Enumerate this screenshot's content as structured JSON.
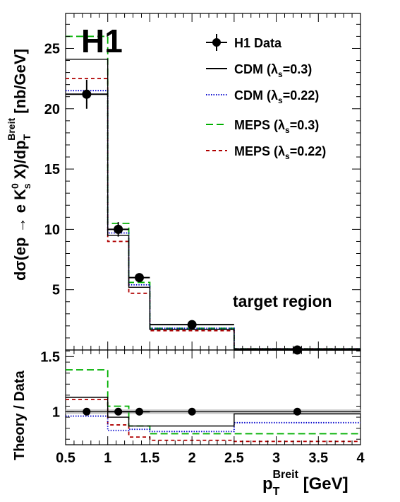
{
  "chart_data": [
    {
      "type": "line",
      "panel": "main",
      "experiment_label": "H1",
      "annotation": "target region",
      "ylabel_parts": {
        "main": "dσ(ep → e K",
        "sup0": "0",
        "sub_s": "s",
        "rest": " X)/dp",
        "sub_T": "T",
        "sup_breit": "Breit",
        "unit": " [nb/GeV]"
      },
      "xlim": [
        0.5,
        4.0
      ],
      "ylim": [
        0.0,
        27.9
      ],
      "log_y": false,
      "grid": false,
      "y_ticks": [
        5,
        10,
        15,
        20,
        25
      ],
      "y_tick_labels": [
        "5",
        "10",
        "15",
        "20",
        "25"
      ],
      "bin_edges": [
        0.5,
        1.0,
        1.25,
        1.5,
        2.5,
        4.0
      ],
      "data": {
        "name": "H1 Data",
        "x": [
          0.75,
          1.125,
          1.375,
          2.0,
          3.25
        ],
        "y": [
          21.2,
          10.0,
          6.0,
          2.1,
          0.0
        ],
        "y_err": [
          1.2,
          0.6,
          0.35,
          0.15,
          0.1
        ],
        "x_half_width": [
          0.25,
          0.125,
          0.125,
          0.5,
          0.75
        ]
      },
      "series": [
        {
          "name": "CDM (λs=0.3)",
          "line_style": "solid",
          "color": "#000000",
          "values": [
            24.1,
            9.5,
            5.2,
            1.7,
            0.1
          ]
        },
        {
          "name": "CDM (λs=0.22)",
          "line_style": "dotted",
          "color": "#0000cc",
          "values": [
            21.5,
            9.7,
            5.4,
            1.8,
            0.1
          ]
        },
        {
          "name": "MEPS (λs=0.3)",
          "line_style": "dashed",
          "color": "#00b000",
          "values": [
            26.0,
            10.5,
            5.6,
            1.8,
            0.1
          ]
        },
        {
          "name": "MEPS (λs=0.22)",
          "line_style": "short-dashed",
          "color": "#b00000",
          "values": [
            22.5,
            9.0,
            4.7,
            1.6,
            0.1
          ]
        }
      ],
      "legend": {
        "placement": "top-right",
        "entries": [
          {
            "main": "H1 Data",
            "sub": "",
            "tail": ""
          },
          {
            "main": "CDM (λ",
            "sub": "s",
            "tail": "=0.3)"
          },
          {
            "main": "CDM (λ",
            "sub": "s",
            "tail": "=0.22)"
          },
          {
            "main": "MEPS (λ",
            "sub": "s",
            "tail": "=0.3)"
          },
          {
            "main": "MEPS (λ",
            "sub": "s",
            "tail": "=0.22)"
          }
        ]
      }
    },
    {
      "type": "line",
      "panel": "ratio",
      "ylabel": "Theory / Data",
      "xlabel_parts": {
        "main": "p",
        "sub_T": "T",
        "sup_breit": "Breit",
        "unit": " [GeV]"
      },
      "xlim": [
        0.5,
        4.0
      ],
      "ylim": [
        0.7,
        1.56
      ],
      "x_ticks": [
        0.5,
        1,
        1.5,
        2,
        2.5,
        3,
        3.5,
        4
      ],
      "x_tick_labels": [
        "0.5",
        "1",
        "1.5",
        "2",
        "2.5",
        "3",
        "3.5",
        "4"
      ],
      "y_ticks": [
        1,
        1.5
      ],
      "y_tick_labels": [
        "1",
        "1.5"
      ],
      "band": [
        0.98,
        1.02
      ],
      "bin_edges": [
        0.5,
        1.0,
        1.25,
        1.5,
        2.5,
        4.0
      ],
      "data": {
        "x": [
          0.75,
          1.125,
          1.375,
          2.0,
          3.25
        ],
        "y": [
          1.0,
          1.0,
          1.0,
          1.0,
          1.0
        ],
        "x_half_width": [
          0.0,
          0.125,
          0.125,
          0.0,
          0.0
        ]
      },
      "series": [
        {
          "name": "CDM (λs=0.3)",
          "line_style": "solid",
          "color": "#000000",
          "values": [
            1.13,
            0.95,
            0.87,
            0.87,
            0.98
          ]
        },
        {
          "name": "CDM (λs=0.22)",
          "line_style": "dotted",
          "color": "#0000cc",
          "values": [
            0.96,
            0.83,
            0.84,
            0.82,
            0.9
          ]
        },
        {
          "name": "MEPS (λs=0.3)",
          "line_style": "dashed",
          "color": "#00b000",
          "values": [
            1.38,
            1.05,
            0.87,
            0.8,
            0.8
          ]
        },
        {
          "name": "MEPS (λs=0.22)",
          "line_style": "short-dashed",
          "color": "#b00000",
          "values": [
            1.11,
            0.88,
            0.77,
            0.74,
            0.73
          ]
        }
      ]
    }
  ]
}
